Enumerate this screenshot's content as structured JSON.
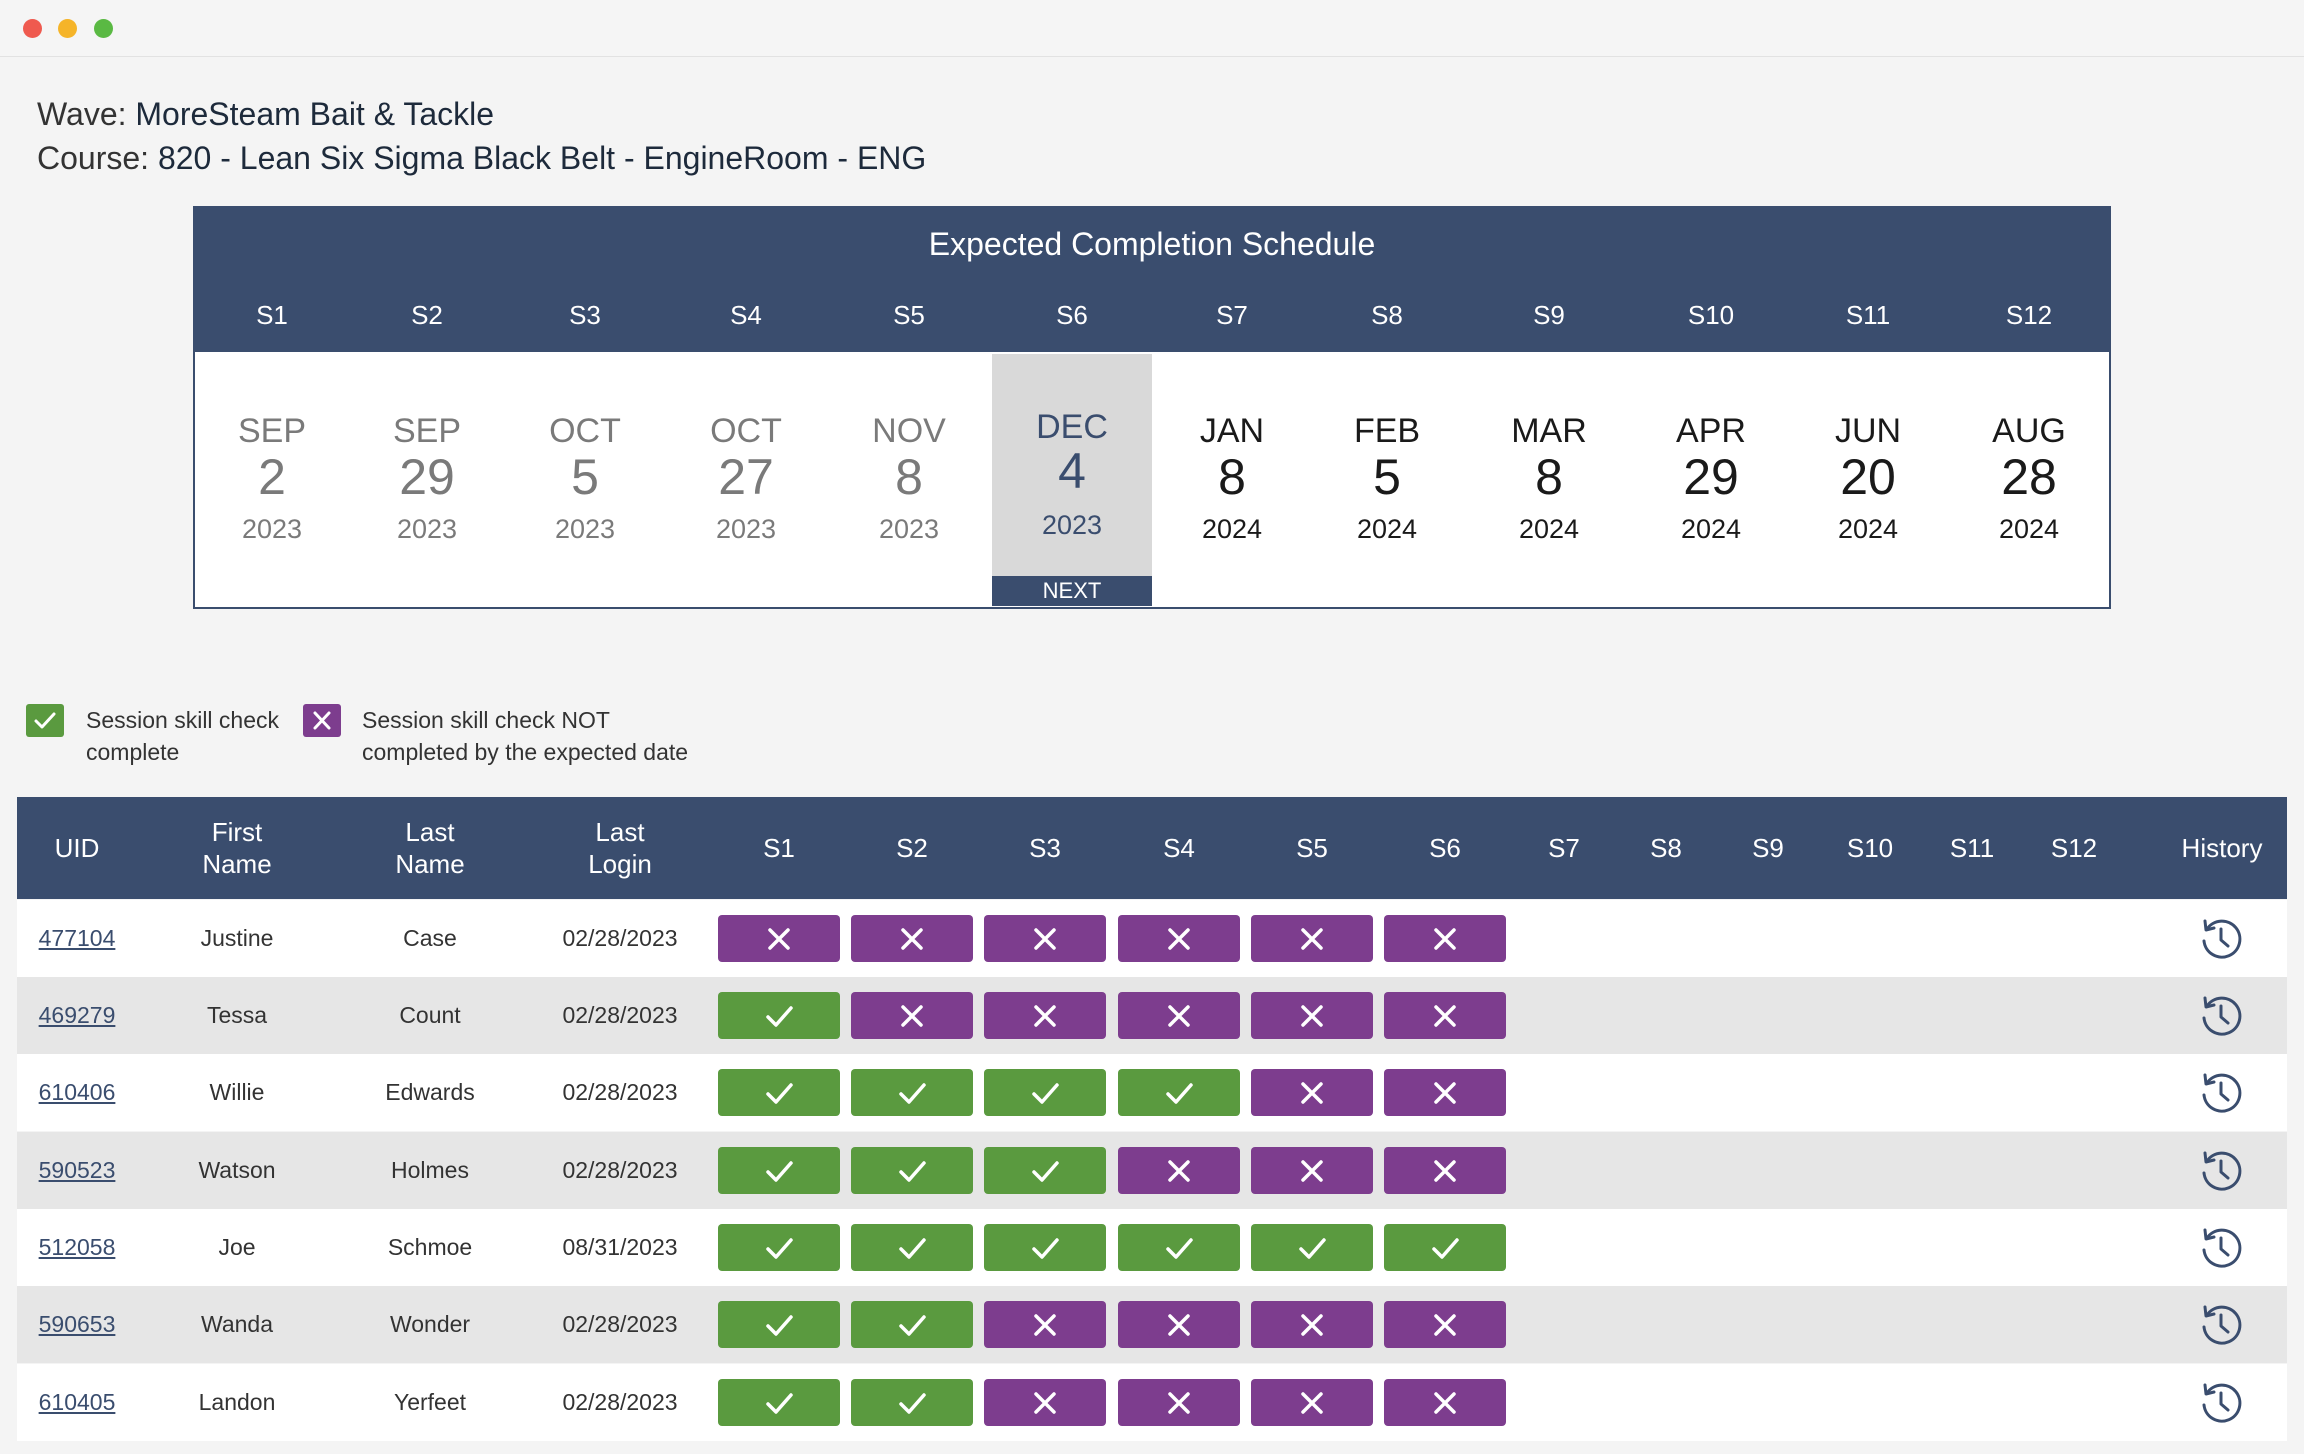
{
  "window": {
    "controls": [
      "close",
      "minimize",
      "maximize"
    ]
  },
  "meta": {
    "wave_label": "Wave:",
    "wave_value": "MoreSteam Bait & Tackle",
    "course_label": "Course:",
    "course_value": "820 - Lean Six Sigma Black Belt - EngineRoom - ENG"
  },
  "schedule": {
    "title": "Expected Completion Schedule",
    "next_label": "NEXT",
    "current_index": 5,
    "sessions": [
      {
        "label": "S1",
        "month": "SEP",
        "day": "2",
        "year": "2023",
        "status": "past"
      },
      {
        "label": "S2",
        "month": "SEP",
        "day": "29",
        "year": "2023",
        "status": "past"
      },
      {
        "label": "S3",
        "month": "OCT",
        "day": "5",
        "year": "2023",
        "status": "past"
      },
      {
        "label": "S4",
        "month": "OCT",
        "day": "27",
        "year": "2023",
        "status": "past"
      },
      {
        "label": "S5",
        "month": "NOV",
        "day": "8",
        "year": "2023",
        "status": "past"
      },
      {
        "label": "S6",
        "month": "DEC",
        "day": "4",
        "year": "2023",
        "status": "current"
      },
      {
        "label": "S7",
        "month": "JAN",
        "day": "8",
        "year": "2024",
        "status": "future"
      },
      {
        "label": "S8",
        "month": "FEB",
        "day": "5",
        "year": "2024",
        "status": "future"
      },
      {
        "label": "S9",
        "month": "MAR",
        "day": "8",
        "year": "2024",
        "status": "future"
      },
      {
        "label": "S10",
        "month": "APR",
        "day": "29",
        "year": "2024",
        "status": "future"
      },
      {
        "label": "S11",
        "month": "JUN",
        "day": "20",
        "year": "2024",
        "status": "future"
      },
      {
        "label": "S12",
        "month": "AUG",
        "day": "28",
        "year": "2024",
        "status": "future"
      }
    ]
  },
  "legend": {
    "complete_line1": "Session skill check",
    "complete_line2": "complete",
    "incomplete_line1": "Session skill check NOT",
    "incomplete_line2": "completed by the expected date",
    "complete_color": "#5a9a3f",
    "incomplete_color": "#7d3d8e"
  },
  "table": {
    "headers": {
      "uid": "UID",
      "first_name_1": "First",
      "first_name_2": "Name",
      "last_name_1": "Last",
      "last_name_2": "Name",
      "last_login_1": "Last",
      "last_login_2": "Login",
      "sessions": [
        "S1",
        "S2",
        "S3",
        "S4",
        "S5",
        "S6",
        "S7",
        "S8",
        "S9",
        "S10",
        "S11",
        "S12"
      ],
      "history": "History"
    },
    "rows": [
      {
        "uid": "477104",
        "first": "Justine",
        "last": "Case",
        "login": "02/28/2023",
        "checks": [
          "no",
          "no",
          "no",
          "no",
          "no",
          "no"
        ]
      },
      {
        "uid": "469279",
        "first": "Tessa",
        "last": "Count",
        "login": "02/28/2023",
        "checks": [
          "ok",
          "no",
          "no",
          "no",
          "no",
          "no"
        ]
      },
      {
        "uid": "610406",
        "first": "Willie",
        "last": "Edwards",
        "login": "02/28/2023",
        "checks": [
          "ok",
          "ok",
          "ok",
          "ok",
          "no",
          "no"
        ]
      },
      {
        "uid": "590523",
        "first": "Watson",
        "last": "Holmes",
        "login": "02/28/2023",
        "checks": [
          "ok",
          "ok",
          "ok",
          "no",
          "no",
          "no"
        ]
      },
      {
        "uid": "512058",
        "first": "Joe",
        "last": "Schmoe",
        "login": "08/31/2023",
        "checks": [
          "ok",
          "ok",
          "ok",
          "ok",
          "ok",
          "ok"
        ]
      },
      {
        "uid": "590653",
        "first": "Wanda",
        "last": "Wonder",
        "login": "02/28/2023",
        "checks": [
          "ok",
          "ok",
          "no",
          "no",
          "no",
          "no"
        ]
      },
      {
        "uid": "610405",
        "first": "Landon",
        "last": "Yerfeet",
        "login": "02/28/2023",
        "checks": [
          "ok",
          "ok",
          "no",
          "no",
          "no",
          "no"
        ]
      }
    ],
    "icons": {
      "complete": "check-icon",
      "incomplete": "x-icon",
      "history": "history-clock-icon"
    }
  }
}
